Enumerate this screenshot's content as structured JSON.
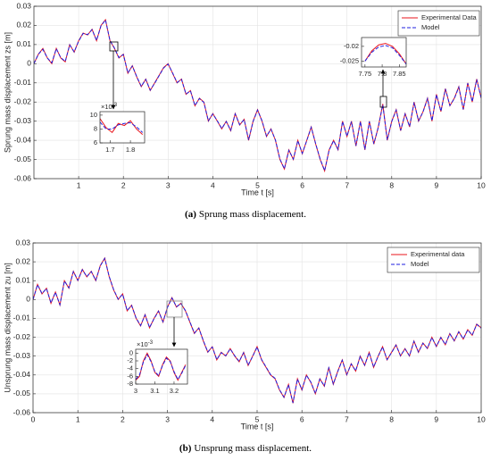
{
  "chart_data": [
    {
      "type": "line",
      "ylabel": "Sprung mass displacement zs [m]",
      "xlabel": "Time t [s]",
      "caption": {
        "label": "(a)",
        "text": "Sprung mass displacement."
      },
      "xlim": [
        0,
        10
      ],
      "ylim": [
        -0.06,
        0.03
      ],
      "xticks": [
        1,
        2,
        3,
        4,
        5,
        6,
        7,
        8,
        9,
        10
      ],
      "yticks": [
        0.03,
        0.02,
        0.01,
        0,
        -0.01,
        -0.02,
        -0.03,
        -0.04,
        -0.05,
        -0.06
      ],
      "grid": true,
      "legend": "northeast",
      "x": [
        0,
        0.1,
        0.2,
        0.3,
        0.4,
        0.5,
        0.6,
        0.7,
        0.8,
        0.9,
        1,
        1.1,
        1.2,
        1.3,
        1.4,
        1.5,
        1.6,
        1.7,
        1.8,
        1.9,
        2,
        2.1,
        2.2,
        2.3,
        2.4,
        2.5,
        2.6,
        2.7,
        2.8,
        2.9,
        3,
        3.1,
        3.2,
        3.3,
        3.4,
        3.5,
        3.6,
        3.7,
        3.8,
        3.9,
        4,
        4.1,
        4.2,
        4.3,
        4.4,
        4.5,
        4.6,
        4.7,
        4.8,
        4.9,
        5,
        5.1,
        5.2,
        5.3,
        5.4,
        5.5,
        5.6,
        5.7,
        5.8,
        5.9,
        6,
        6.1,
        6.2,
        6.3,
        6.4,
        6.5,
        6.6,
        6.7,
        6.8,
        6.9,
        7,
        7.1,
        7.2,
        7.3,
        7.4,
        7.5,
        7.6,
        7.7,
        7.8,
        7.9,
        8,
        8.1,
        8.2,
        8.3,
        8.4,
        8.5,
        8.6,
        8.7,
        8.8,
        8.9,
        9,
        9.1,
        9.2,
        9.3,
        9.4,
        9.5,
        9.6,
        9.7,
        9.8,
        9.9,
        10
      ],
      "series": [
        {
          "name": "Experimental Data",
          "color": "#e8141c",
          "dash": false,
          "values": [
            0,
            0.005,
            0.008,
            0.003,
            0,
            0.008,
            0.003,
            0.001,
            0.01,
            0.006,
            0.012,
            0.016,
            0.015,
            0.018,
            0.012,
            0.02,
            0.023,
            0.012,
            0.008,
            0.003,
            0.005,
            -0.005,
            -0.001,
            -0.007,
            -0.012,
            -0.008,
            -0.014,
            -0.01,
            -0.006,
            -0.002,
            0,
            -0.005,
            -0.01,
            -0.008,
            -0.016,
            -0.014,
            -0.022,
            -0.018,
            -0.02,
            -0.03,
            -0.026,
            -0.03,
            -0.034,
            -0.03,
            -0.035,
            -0.026,
            -0.032,
            -0.029,
            -0.04,
            -0.03,
            -0.024,
            -0.03,
            -0.038,
            -0.034,
            -0.04,
            -0.05,
            -0.055,
            -0.045,
            -0.05,
            -0.04,
            -0.047,
            -0.04,
            -0.033,
            -0.042,
            -0.05,
            -0.056,
            -0.045,
            -0.04,
            -0.045,
            -0.03,
            -0.038,
            -0.03,
            -0.043,
            -0.03,
            -0.045,
            -0.03,
            -0.042,
            -0.033,
            -0.021,
            -0.04,
            -0.03,
            -0.024,
            -0.035,
            -0.026,
            -0.033,
            -0.02,
            -0.03,
            -0.025,
            -0.018,
            -0.03,
            -0.016,
            -0.025,
            -0.013,
            -0.022,
            -0.018,
            -0.012,
            -0.024,
            -0.01,
            -0.02,
            -0.008,
            -0.018
          ]
        },
        {
          "name": "Model",
          "color": "#1f1fe0",
          "dash": true,
          "values": [
            0,
            0.005,
            0.0075,
            0.003,
            0.0005,
            0.0078,
            0.0032,
            0.0012,
            0.0098,
            0.0062,
            0.0118,
            0.0158,
            0.0152,
            0.0178,
            0.0122,
            0.0198,
            0.0228,
            0.0122,
            0.0082,
            0.0032,
            0.0048,
            -0.0048,
            -0.0012,
            -0.0068,
            -0.0118,
            -0.0082,
            -0.0138,
            -0.0102,
            -0.0062,
            -0.0022,
            -0.0002,
            -0.0048,
            -0.0098,
            -0.0082,
            -0.0158,
            -0.0142,
            -0.0218,
            -0.0182,
            -0.0202,
            -0.0298,
            -0.0262,
            -0.0298,
            -0.0338,
            -0.0302,
            -0.0348,
            -0.0262,
            -0.0318,
            -0.0292,
            -0.0398,
            -0.0302,
            -0.0242,
            -0.0298,
            -0.0378,
            -0.0342,
            -0.0398,
            -0.0498,
            -0.0548,
            -0.0452,
            -0.0498,
            -0.0402,
            -0.0468,
            -0.0402,
            -0.0332,
            -0.0418,
            -0.0498,
            -0.0558,
            -0.0452,
            -0.0402,
            -0.0448,
            -0.0302,
            -0.0378,
            -0.0302,
            -0.0428,
            -0.0302,
            -0.0448,
            -0.0302,
            -0.0418,
            -0.0332,
            -0.0215,
            -0.0398,
            -0.0302,
            -0.0242,
            -0.0348,
            -0.0262,
            -0.0328,
            -0.0202,
            -0.0298,
            -0.0252,
            -0.0182,
            -0.0298,
            -0.0162,
            -0.0248,
            -0.0132,
            -0.0218,
            -0.0182,
            -0.0122,
            -0.0238,
            -0.0102,
            -0.0198,
            -0.0082,
            -0.0178
          ]
        }
      ]
    },
    {
      "type": "line",
      "xlim": [
        1.65,
        1.87
      ],
      "ylim": [
        6,
        10.5
      ],
      "xticks": [
        1.7,
        1.8
      ],
      "yticks": [
        10,
        8,
        6
      ],
      "grid": false,
      "y_multiplier": {
        "base": "×10",
        "exponent": "-3"
      },
      "x": [
        1.65,
        1.68,
        1.71,
        1.74,
        1.77,
        1.8,
        1.83,
        1.86
      ],
      "series": [
        {
          "name": "Experimental Data",
          "color": "#e8141c",
          "dash": false,
          "values": [
            9.5,
            8.2,
            7.5,
            8.8,
            8.5,
            9.2,
            8,
            7.2
          ]
        },
        {
          "name": "Model",
          "color": "#1f1fe0",
          "dash": true,
          "values": [
            9,
            8,
            8,
            8.6,
            8.8,
            8.9,
            8.3,
            7.5
          ]
        }
      ]
    },
    {
      "type": "line",
      "xlim": [
        7.74,
        7.87
      ],
      "ylim": [
        -0.027,
        -0.017
      ],
      "xticks": [
        7.75,
        7.8,
        7.85
      ],
      "yticks": [
        -0.02,
        -0.025
      ],
      "grid": false,
      "x": [
        7.75,
        7.77,
        7.79,
        7.81,
        7.83,
        7.85,
        7.87
      ],
      "series": [
        {
          "name": "Experimental Data",
          "color": "#e8141c",
          "dash": false,
          "values": [
            -0.025,
            -0.0215,
            -0.0195,
            -0.019,
            -0.02,
            -0.0225,
            -0.026
          ]
        },
        {
          "name": "Model",
          "color": "#1f1fe0",
          "dash": true,
          "values": [
            -0.025,
            -0.022,
            -0.0202,
            -0.0197,
            -0.0205,
            -0.023,
            -0.026
          ]
        }
      ]
    },
    {
      "type": "line",
      "ylabel": "Unsprung mass displacement zu [m]",
      "xlabel": "Time t [s]",
      "caption": {
        "label": "(b)",
        "text": "Unsprung mass displacement."
      },
      "xlim": [
        0,
        10
      ],
      "ylim": [
        -0.06,
        0.03
      ],
      "xticks": [
        0,
        1,
        2,
        3,
        4,
        5,
        6,
        7,
        8,
        9,
        10
      ],
      "yticks": [
        0.03,
        0.02,
        0.01,
        0,
        -0.01,
        -0.02,
        -0.03,
        -0.04,
        -0.05,
        -0.06
      ],
      "grid": true,
      "legend": "northeast",
      "x": [
        0,
        0.1,
        0.2,
        0.3,
        0.4,
        0.5,
        0.6,
        0.7,
        0.8,
        0.9,
        1,
        1.1,
        1.2,
        1.3,
        1.4,
        1.5,
        1.6,
        1.7,
        1.8,
        1.9,
        2,
        2.1,
        2.2,
        2.3,
        2.4,
        2.5,
        2.6,
        2.7,
        2.8,
        2.9,
        3,
        3.1,
        3.2,
        3.3,
        3.4,
        3.5,
        3.6,
        3.7,
        3.8,
        3.9,
        4,
        4.1,
        4.2,
        4.3,
        4.4,
        4.5,
        4.6,
        4.7,
        4.8,
        4.9,
        5,
        5.1,
        5.2,
        5.3,
        5.4,
        5.5,
        5.6,
        5.7,
        5.8,
        5.9,
        6,
        6.1,
        6.2,
        6.3,
        6.4,
        6.5,
        6.6,
        6.7,
        6.8,
        6.9,
        7,
        7.1,
        7.2,
        7.3,
        7.4,
        7.5,
        7.6,
        7.7,
        7.8,
        7.9,
        8,
        8.1,
        8.2,
        8.3,
        8.4,
        8.5,
        8.6,
        8.7,
        8.8,
        8.9,
        9,
        9.1,
        9.2,
        9.3,
        9.4,
        9.5,
        9.6,
        9.7,
        9.8,
        9.9,
        10
      ],
      "series": [
        {
          "name": "Experimental data",
          "color": "#e8141c",
          "dash": false,
          "values": [
            0,
            0.008,
            0.003,
            0.006,
            -0.002,
            0.004,
            -0.003,
            0.01,
            0.006,
            0.015,
            0.01,
            0.016,
            0.012,
            0.015,
            0.01,
            0.018,
            0.022,
            0.012,
            0.005,
            0,
            0.003,
            -0.006,
            -0.003,
            -0.01,
            -0.014,
            -0.008,
            -0.015,
            -0.01,
            -0.006,
            -0.012,
            -0.004,
            0.001,
            -0.004,
            -0.002,
            -0.006,
            -0.012,
            -0.018,
            -0.015,
            -0.022,
            -0.028,
            -0.025,
            -0.032,
            -0.028,
            -0.03,
            -0.026,
            -0.03,
            -0.033,
            -0.028,
            -0.035,
            -0.03,
            -0.025,
            -0.032,
            -0.036,
            -0.04,
            -0.042,
            -0.048,
            -0.052,
            -0.045,
            -0.055,
            -0.042,
            -0.048,
            -0.04,
            -0.044,
            -0.05,
            -0.042,
            -0.046,
            -0.036,
            -0.045,
            -0.038,
            -0.032,
            -0.04,
            -0.034,
            -0.038,
            -0.03,
            -0.035,
            -0.028,
            -0.036,
            -0.03,
            -0.025,
            -0.032,
            -0.028,
            -0.024,
            -0.03,
            -0.026,
            -0.03,
            -0.022,
            -0.028,
            -0.023,
            -0.026,
            -0.02,
            -0.025,
            -0.02,
            -0.024,
            -0.018,
            -0.022,
            -0.017,
            -0.021,
            -0.016,
            -0.019,
            -0.013,
            -0.015
          ]
        },
        {
          "name": "Model",
          "color": "#1f1fe0",
          "dash": true,
          "values": [
            0,
            0.0078,
            0.0032,
            0.0058,
            -0.0018,
            0.0038,
            -0.0028,
            0.0098,
            0.0062,
            0.0148,
            0.0102,
            0.0158,
            0.0122,
            0.0148,
            0.0102,
            0.0178,
            0.0218,
            0.0122,
            0.0052,
            0.0002,
            0.0028,
            -0.0058,
            -0.0032,
            -0.0098,
            -0.0138,
            -0.0082,
            -0.0148,
            -0.0102,
            -0.0062,
            -0.0118,
            -0.0042,
            0.0008,
            -0.0038,
            -0.0022,
            -0.0058,
            -0.0118,
            -0.0178,
            -0.0152,
            -0.0218,
            -0.0278,
            -0.0252,
            -0.0318,
            -0.0282,
            -0.0298,
            -0.0262,
            -0.0298,
            -0.0328,
            -0.0282,
            -0.0348,
            -0.0302,
            -0.0252,
            -0.0318,
            -0.0358,
            -0.0398,
            -0.0418,
            -0.0478,
            -0.0518,
            -0.0452,
            -0.0548,
            -0.0422,
            -0.0478,
            -0.0402,
            -0.0438,
            -0.0498,
            -0.0422,
            -0.0458,
            -0.0362,
            -0.0448,
            -0.0382,
            -0.0322,
            -0.0398,
            -0.0342,
            -0.0378,
            -0.0302,
            -0.0348,
            -0.0282,
            -0.0358,
            -0.0302,
            -0.0252,
            -0.0318,
            -0.0282,
            -0.0242,
            -0.0298,
            -0.0262,
            -0.0298,
            -0.0222,
            -0.0278,
            -0.0232,
            -0.0258,
            -0.0202,
            -0.0248,
            -0.0202,
            -0.0238,
            -0.0182,
            -0.0218,
            -0.0172,
            -0.0208,
            -0.0162,
            -0.0188,
            -0.0132,
            -0.0152
          ]
        }
      ]
    },
    {
      "type": "line",
      "xlim": [
        3,
        3.27
      ],
      "ylim": [
        -8,
        1
      ],
      "xticks": [
        3,
        3.1,
        3.2
      ],
      "yticks": [
        0,
        -2,
        -4,
        -6,
        -8
      ],
      "grid": false,
      "y_multiplier": {
        "base": "×10",
        "exponent": "-3"
      },
      "x": [
        3,
        3.02,
        3.04,
        3.06,
        3.08,
        3.1,
        3.12,
        3.14,
        3.16,
        3.18,
        3.2,
        3.22,
        3.24,
        3.26
      ],
      "series": [
        {
          "name": "Experimental data",
          "color": "#e8141c",
          "dash": false,
          "values": [
            -7,
            -6,
            -2,
            0,
            -2,
            -5,
            -6,
            -3,
            -1,
            -2,
            -5,
            -7,
            -5,
            -3
          ]
        },
        {
          "name": "Model",
          "color": "#1f1fe0",
          "dash": true,
          "values": [
            -6.8,
            -5.6,
            -2.3,
            -0.4,
            -2.2,
            -4.8,
            -5.8,
            -3.2,
            -1.3,
            -2.2,
            -4.8,
            -6.8,
            -5.2,
            -3.2
          ]
        }
      ]
    }
  ]
}
